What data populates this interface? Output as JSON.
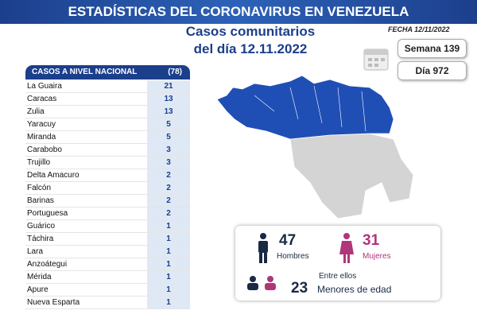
{
  "header": {
    "title": "ESTADÍSTICAS DEL CORONAVIRUS EN VENEZUELA",
    "date": "FECHA 12/11/2022"
  },
  "subtitle": {
    "line1": "Casos comunitarios",
    "line2": "del día 12.11.2022"
  },
  "counters": {
    "week": "Semana 139",
    "day": "Día 972"
  },
  "table": {
    "title": "CASOS A NIVEL NACIONAL",
    "total": "(78)",
    "rows": [
      [
        "La Guaira",
        21
      ],
      [
        "Caracas",
        13
      ],
      [
        "Zulia",
        13
      ],
      [
        "Yaracuy",
        5
      ],
      [
        "Miranda",
        5
      ],
      [
        "Carabobo",
        3
      ],
      [
        "Trujillo",
        3
      ],
      [
        "Delta Amacuro",
        2
      ],
      [
        "Falcón",
        2
      ],
      [
        "Barinas",
        2
      ],
      [
        "Portuguesa",
        2
      ],
      [
        "Guárico",
        1
      ],
      [
        "Táchira",
        1
      ],
      [
        "Lara",
        1
      ],
      [
        "Anzoátegui",
        1
      ],
      [
        "Mérida",
        1
      ],
      [
        "Apure",
        1
      ],
      [
        "Nueva Esparta",
        1
      ]
    ]
  },
  "stats": {
    "men": {
      "value": 47,
      "label": "Hombres"
    },
    "women": {
      "value": 31,
      "label": "Mujeres"
    },
    "minors_intro": "Entre ellos",
    "minors": {
      "value": 23,
      "label": "Menores de edad"
    }
  }
}
